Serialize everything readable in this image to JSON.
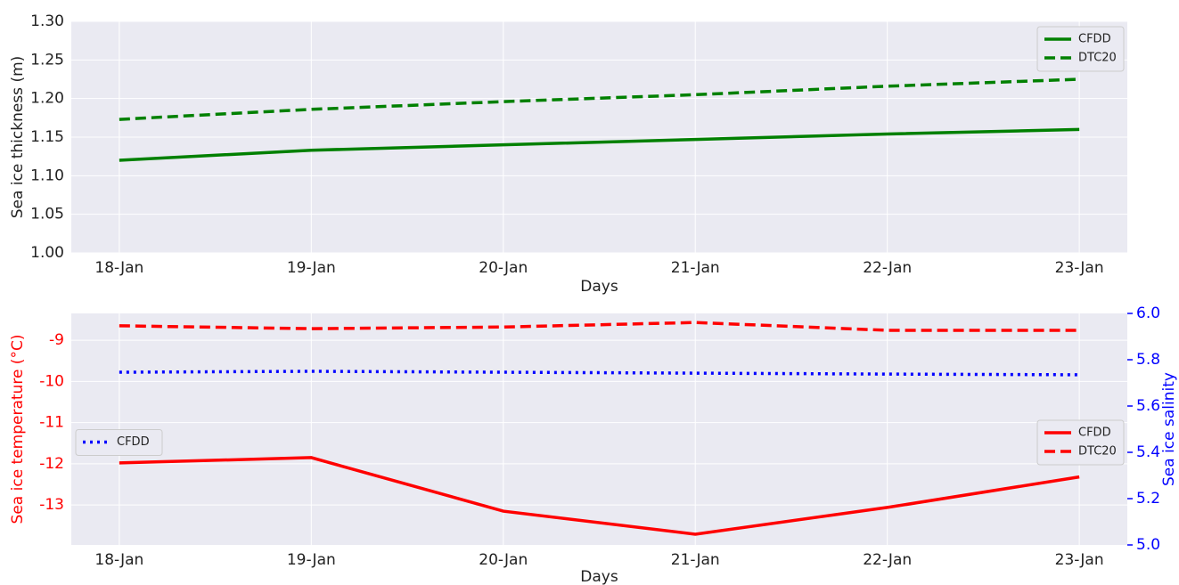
{
  "chart_data": [
    {
      "type": "line",
      "xlabel": "Days",
      "ylabel": "Sea ice thickness (m)",
      "categories": [
        "18-Jan",
        "19-Jan",
        "20-Jan",
        "21-Jan",
        "22-Jan",
        "23-Jan"
      ],
      "series": [
        {
          "name": "CFDD",
          "color": "#008000",
          "linestyle": "solid",
          "values": [
            1.12,
            1.133,
            1.14,
            1.147,
            1.154,
            1.16
          ]
        },
        {
          "name": "DTC20",
          "color": "#008000",
          "linestyle": "dashed",
          "values": [
            1.173,
            1.186,
            1.196,
            1.205,
            1.216,
            1.225
          ]
        }
      ],
      "ylim": [
        1.0,
        1.3
      ],
      "yticks": [
        {
          "value": 1.0,
          "label": "1.00"
        },
        1.05,
        {
          "value": 1.1,
          "label": "1.10"
        },
        1.15,
        {
          "value": 1.2,
          "label": "1.20"
        },
        1.25,
        {
          "value": 1.3,
          "label": "1.30"
        }
      ],
      "grid": true,
      "legend": "upper right"
    },
    {
      "type": "line",
      "xlabel": "Days",
      "ylabel": "Sea ice temperature (°C)",
      "y2label": "Sea ice salinity",
      "ylabel_color": "#ff0000",
      "y2label_color": "#0000ff",
      "categories": [
        "18-Jan",
        "19-Jan",
        "20-Jan",
        "21-Jan",
        "22-Jan",
        "23-Jan"
      ],
      "series": [
        {
          "name": "CFDD",
          "color": "#ff0000",
          "linestyle": "solid",
          "values": [
            -11.98,
            -11.85,
            -13.15,
            -13.71,
            -13.06,
            -12.32
          ]
        },
        {
          "name": "DTC20",
          "color": "#ff0000",
          "linestyle": "dashed",
          "values": [
            -8.65,
            -8.72,
            -8.68,
            -8.57,
            -8.76,
            -8.76
          ]
        },
        {
          "name": "CFDD",
          "color": "#0000ff",
          "linestyle": "dotted",
          "axis": "y2",
          "values": [
            5.746,
            5.75,
            5.746,
            5.742,
            5.738,
            5.735
          ]
        }
      ],
      "ylim": [
        -13.97,
        -8.35
      ],
      "yticks": [
        -13,
        -12,
        -11,
        -10,
        -9
      ],
      "y2lim": [
        5.0,
        6.0
      ],
      "y2ticks": [
        {
          "value": 5.0,
          "label": "5.0"
        },
        5.2,
        5.4,
        5.6,
        5.8,
        {
          "value": 6.0,
          "label": "6.0"
        }
      ],
      "grid": true,
      "legend": "center right",
      "y2legend": "center left"
    }
  ]
}
